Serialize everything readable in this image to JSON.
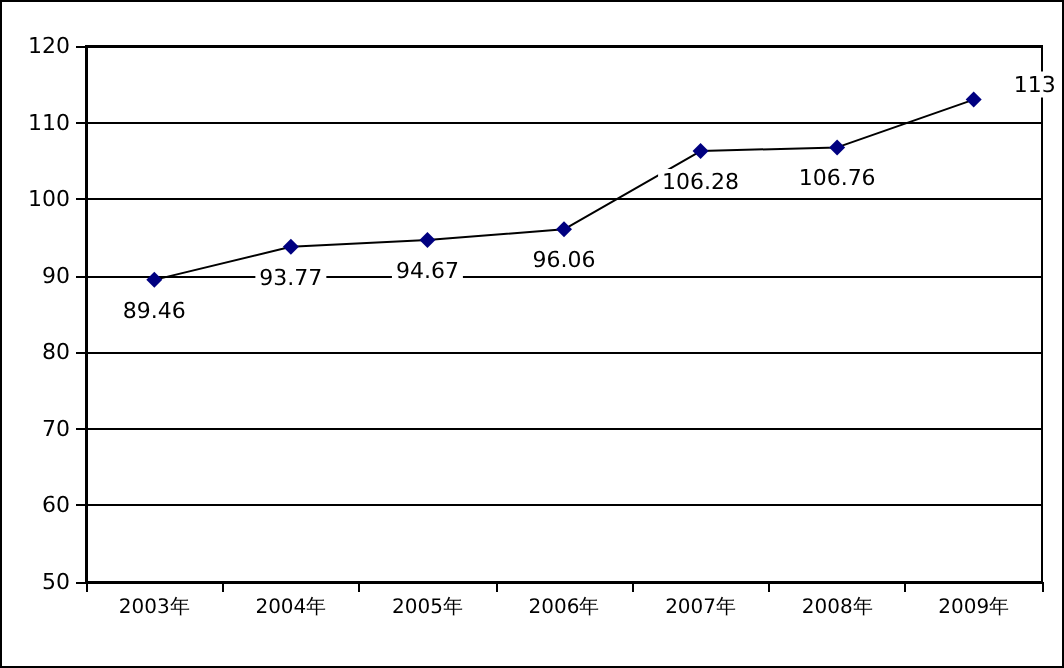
{
  "chart_data": {
    "type": "line",
    "categories": [
      "2003年",
      "2004年",
      "2005年",
      "2006年",
      "2007年",
      "2008年",
      "2009年"
    ],
    "series": [
      {
        "color": "#000080",
        "values": [
          89.46,
          93.77,
          94.67,
          96.06,
          106.28,
          106.76,
          113
        ]
      }
    ],
    "ylim": [
      50,
      120
    ],
    "yticks": [
      50,
      60,
      70,
      80,
      90,
      100,
      110,
      120
    ],
    "grid": "y",
    "marker": "diamond",
    "line_style": "solid",
    "data_labels": true
  }
}
